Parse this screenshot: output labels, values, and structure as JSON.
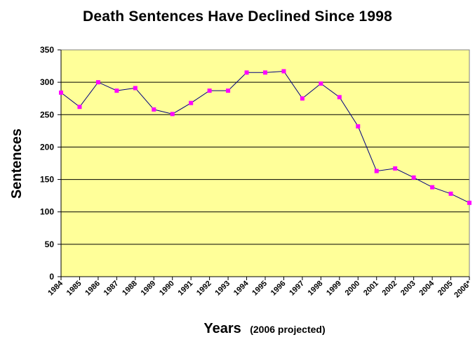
{
  "chart_data": {
    "type": "line",
    "title": "Death Sentences Have Declined Since 1998",
    "xlabel": "Years",
    "xlabel_note": "(2006 projected)",
    "ylabel": "Sentences",
    "categories": [
      "1984",
      "1985",
      "1986",
      "1987",
      "1988",
      "1989",
      "1990",
      "1991",
      "1992",
      "1993",
      "1994",
      "1995",
      "1996",
      "1997",
      "1998",
      "1999",
      "2000",
      "2001",
      "2002",
      "2003",
      "2004",
      "2005",
      "2006*"
    ],
    "series": [
      {
        "values": [
          284,
          262,
          300,
          287,
          291,
          258,
          251,
          268,
          287,
          287,
          315,
          315,
          317,
          275,
          298,
          277,
          232,
          163,
          167,
          153,
          138,
          128,
          114
        ]
      }
    ],
    "ylim": [
      0,
      350
    ],
    "yticks": [
      0,
      50,
      100,
      150,
      200,
      250,
      300,
      350
    ],
    "grid": true,
    "legend": "none",
    "colors": {
      "plot_bg": "#FFFF99",
      "line": "#000080",
      "marker": "#FF00FF",
      "grid": "#000000"
    }
  }
}
